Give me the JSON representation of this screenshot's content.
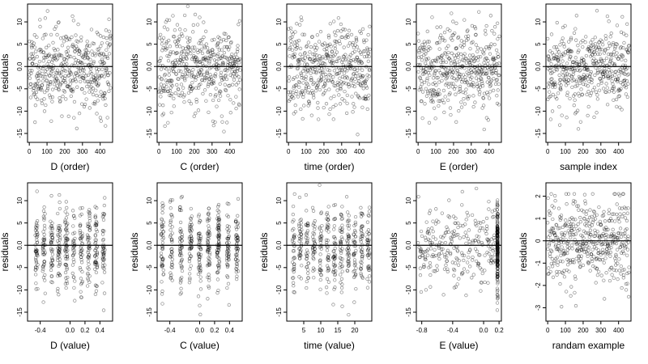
{
  "chart_data": [
    {
      "type": "scatter",
      "xlabel": "D (order)",
      "ylabel": "residuals",
      "xlim": [
        -10,
        470
      ],
      "ylim": [
        -17,
        14
      ],
      "xticks": [
        0,
        100,
        200,
        300,
        400
      ],
      "xtick_labels": [
        "0",
        "100",
        "200",
        "300",
        "400"
      ],
      "yticks": [
        -15,
        -10,
        -5,
        0,
        5,
        10
      ],
      "ytick_labels": [
        "-15",
        "-10",
        "-5",
        "0.0",
        "5",
        "10"
      ],
      "hline": 0,
      "n_points": 460,
      "x_mode": "index",
      "y_dist": "residual",
      "spread": 5,
      "seed": 11
    },
    {
      "type": "scatter",
      "xlabel": "C (order)",
      "ylabel": "residuals",
      "xlim": [
        -10,
        470
      ],
      "ylim": [
        -17,
        14
      ],
      "xticks": [
        0,
        100,
        200,
        300,
        400
      ],
      "xtick_labels": [
        "0",
        "100",
        "200",
        "300",
        "400"
      ],
      "yticks": [
        -15,
        -10,
        -5,
        0,
        5,
        10
      ],
      "ytick_labels": [
        "-15",
        "-10",
        "-5",
        "0.0",
        "5",
        "10"
      ],
      "hline": 0,
      "n_points": 460,
      "x_mode": "index",
      "y_dist": "residual",
      "spread": 5,
      "seed": 23
    },
    {
      "type": "scatter",
      "xlabel": "time (order)",
      "ylabel": "residuals",
      "xlim": [
        -10,
        470
      ],
      "ylim": [
        -17,
        14
      ],
      "xticks": [
        0,
        100,
        200,
        300,
        400
      ],
      "xtick_labels": [
        "0",
        "100",
        "200",
        "300",
        "400"
      ],
      "yticks": [
        -15,
        -10,
        -5,
        0,
        5,
        10
      ],
      "ytick_labels": [
        "-15",
        "-10",
        "-5",
        "0.0",
        "5",
        "10"
      ],
      "hline": 0,
      "n_points": 460,
      "x_mode": "index",
      "y_dist": "residual",
      "spread": 5,
      "seed": 37
    },
    {
      "type": "scatter",
      "xlabel": "E (order)",
      "ylabel": "residuals",
      "xlim": [
        -10,
        470
      ],
      "ylim": [
        -17,
        14
      ],
      "xticks": [
        0,
        100,
        200,
        300,
        400
      ],
      "xtick_labels": [
        "0",
        "100",
        "200",
        "300",
        "400"
      ],
      "yticks": [
        -15,
        -10,
        -5,
        0,
        5,
        10
      ],
      "ytick_labels": [
        "-15",
        "-10",
        "-5",
        "0.0",
        "5",
        "10"
      ],
      "hline": 0,
      "n_points": 460,
      "x_mode": "index",
      "y_dist": "residual",
      "spread": 5,
      "seed": 41
    },
    {
      "type": "scatter",
      "xlabel": "sample index",
      "ylabel": "residuals",
      "xlim": [
        -10,
        470
      ],
      "ylim": [
        -17,
        14
      ],
      "xticks": [
        0,
        100,
        200,
        300,
        400
      ],
      "xtick_labels": [
        "0",
        "100",
        "200",
        "300",
        "400"
      ],
      "yticks": [
        -15,
        -10,
        -5,
        0,
        5,
        10
      ],
      "ytick_labels": [
        "-15",
        "-10",
        "-5",
        "0.0",
        "5",
        "10"
      ],
      "hline": 0,
      "n_points": 460,
      "x_mode": "index",
      "y_dist": "residual",
      "spread": 5,
      "seed": 53
    },
    {
      "type": "scatter",
      "xlabel": "D (value)",
      "ylabel": "residuals",
      "xlim": [
        -0.57,
        0.57
      ],
      "ylim": [
        -17,
        14
      ],
      "xticks": [
        -0.4,
        0.0,
        0.2,
        0.4
      ],
      "xtick_labels": [
        "-0.4",
        "0.0",
        "0.2",
        "0.4"
      ],
      "yticks": [
        -15,
        -10,
        -5,
        0,
        5,
        10
      ],
      "ytick_labels": [
        "-15",
        "-10",
        "-5",
        "0.0",
        "5",
        "10"
      ],
      "hline": 0,
      "n_points": 460,
      "x_mode": "clusters",
      "x_levels": [
        -0.45,
        -0.35,
        -0.25,
        -0.15,
        -0.05,
        0.05,
        0.15,
        0.25,
        0.35,
        0.45
      ],
      "y_dist": "residual",
      "spread": 5,
      "seed": 61
    },
    {
      "type": "scatter",
      "xlabel": "C (value)",
      "ylabel": "residuals",
      "xlim": [
        -0.57,
        0.57
      ],
      "ylim": [
        -17,
        14
      ],
      "xticks": [
        -0.4,
        0.0,
        0.2,
        0.4
      ],
      "xtick_labels": [
        "-0.4",
        "0.0",
        "0.2",
        "0.4"
      ],
      "yticks": [
        -15,
        -10,
        -5,
        0,
        5,
        10
      ],
      "ytick_labels": [
        "-15",
        "-10",
        "-5",
        "0.0",
        "5",
        "10"
      ],
      "hline": 0,
      "n_points": 460,
      "x_mode": "clusters",
      "x_levels": [
        -0.5,
        -0.38,
        -0.25,
        -0.12,
        0.0,
        0.12,
        0.25,
        0.38,
        0.5
      ],
      "y_dist": "residual",
      "spread": 5,
      "seed": 71
    },
    {
      "type": "scatter",
      "xlabel": "time (value)",
      "ylabel": "residuals",
      "xlim": [
        0,
        25
      ],
      "ylim": [
        -17,
        14
      ],
      "xticks": [
        5,
        10,
        15,
        20
      ],
      "xtick_labels": [
        "5",
        "10",
        "15",
        "20"
      ],
      "yticks": [
        -15,
        -10,
        -5,
        0,
        5,
        10
      ],
      "ytick_labels": [
        "-15",
        "-10",
        "-5",
        "0.0",
        "5",
        "10"
      ],
      "hline": 0,
      "n_points": 460,
      "x_mode": "clusters",
      "x_levels": [
        2,
        4,
        6,
        8,
        10,
        12,
        14,
        16,
        18,
        20,
        22,
        24
      ],
      "y_dist": "residual",
      "spread": 5,
      "seed": 83
    },
    {
      "type": "scatter",
      "xlabel": "E (value)",
      "ylabel": "residuals",
      "xlim": [
        -0.87,
        0.23
      ],
      "ylim": [
        -17,
        14
      ],
      "xticks": [
        -0.8,
        -0.4,
        0.0,
        0.2
      ],
      "xtick_labels": [
        "-0.8",
        "-0.4",
        "0.0",
        "0.2"
      ],
      "yticks": [
        -15,
        -10,
        -5,
        0,
        5,
        10
      ],
      "ytick_labels": [
        "-15",
        "-10",
        "-5",
        "0.0",
        "5",
        "10"
      ],
      "hline": 0,
      "n_points": 460,
      "x_mode": "e_value",
      "y_dist": "residual",
      "spread": 5,
      "seed": 97
    },
    {
      "type": "scatter",
      "xlabel": "randam example",
      "ylabel": "residuals",
      "xlim": [
        -10,
        470
      ],
      "ylim": [
        -3.6,
        2.6
      ],
      "xticks": [
        0,
        100,
        200,
        300,
        400
      ],
      "xtick_labels": [
        "0",
        "100",
        "200",
        "300",
        "400"
      ],
      "yticks": [
        -3,
        -2,
        -1,
        0,
        1,
        2
      ],
      "ytick_labels": [
        "-3",
        "-2",
        "-1",
        "0",
        "1",
        "2"
      ],
      "hline": 0,
      "n_points": 460,
      "x_mode": "index",
      "y_dist": "normal",
      "spread": 1,
      "seed": 109
    }
  ]
}
